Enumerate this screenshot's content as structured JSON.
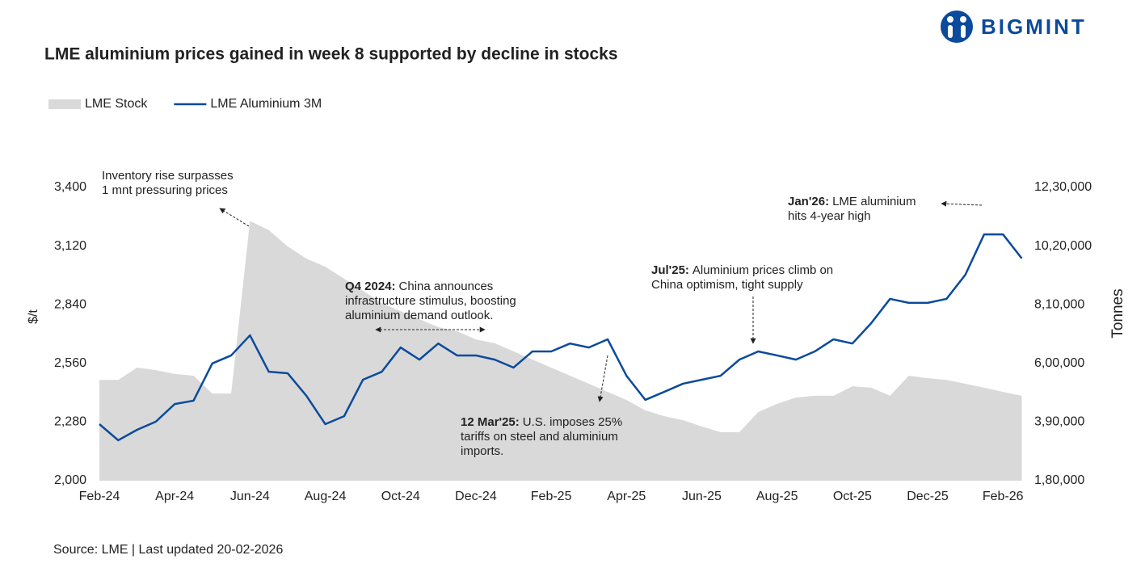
{
  "chart_data": {
    "type": "line-area",
    "title": "LME aluminium prices gained in week 8 supported by decline in stocks",
    "logo": "BIGMINT",
    "source": "Source: LME | Last updated 20-02-2026",
    "ylabel": "$/t",
    "y2label": "Tonnes",
    "categories": [
      "Feb-24",
      null,
      null,
      null,
      "Apr-24",
      null,
      null,
      null,
      "Jun-24",
      null,
      null,
      null,
      "Aug-24",
      null,
      null,
      null,
      "Oct-24",
      null,
      null,
      null,
      "Dec-24",
      null,
      null,
      null,
      "Feb-25",
      null,
      null,
      null,
      "Apr-25",
      null,
      null,
      null,
      "Jun-25",
      null,
      null,
      null,
      "Aug-25",
      null,
      null,
      null,
      "Oct-25",
      null,
      null,
      null,
      "Dec-25",
      null,
      null,
      null,
      "Feb-26",
      null
    ],
    "series": [
      {
        "name": "LME Stock",
        "color": "#d9d9d9",
        "axis": "y2",
        "kind": "area",
        "values": [
          541000,
          541000,
          585000,
          576000,
          562000,
          556000,
          492000,
          492000,
          1110000,
          1077000,
          1019000,
          975000,
          946000,
          903000,
          860000,
          816000,
          787000,
          758000,
          730000,
          715000,
          686000,
          672000,
          643000,
          614000,
          585000,
          556000,
          527000,
          498000,
          469000,
          432000,
          411000,
          397000,
          374000,
          354000,
          354000,
          426000,
          455000,
          478000,
          484000,
          484000,
          518000,
          513000,
          484000,
          556000,
          547000,
          541000,
          527000,
          513000,
          498000,
          484000
        ]
      },
      {
        "name": "LME Aluminium 3M",
        "color": "#0b4a9c",
        "axis": "y",
        "kind": "line",
        "values": [
          2270,
          2193,
          2243,
          2282,
          2366,
          2382,
          2560,
          2598,
          2694,
          2520,
          2513,
          2405,
          2270,
          2308,
          2482,
          2520,
          2636,
          2578,
          2655,
          2598,
          2598,
          2578,
          2540,
          2617,
          2617,
          2655,
          2636,
          2675,
          2501,
          2386,
          2424,
          2463,
          2482,
          2501,
          2578,
          2617,
          2598,
          2578,
          2617,
          2675,
          2655,
          2752,
          2868,
          2849,
          2849,
          2868,
          2983,
          3176,
          3176,
          3061
        ]
      }
    ],
    "ylim": [
      2000,
      3400
    ],
    "yticks": [
      {
        "value": 2000,
        "label": "2,000"
      },
      {
        "value": 2280,
        "label": "2,280"
      },
      {
        "value": 2560,
        "label": "2,560"
      },
      {
        "value": 2840,
        "label": "2,840"
      },
      {
        "value": 3120,
        "label": "3,120"
      },
      {
        "value": 3400,
        "label": "3,400"
      }
    ],
    "y2lim": [
      180000,
      1230000
    ],
    "y2ticks": [
      {
        "value": 180000,
        "label": "1,80,000"
      },
      {
        "value": 390000,
        "label": "3,90,000"
      },
      {
        "value": 600000,
        "label": "6,00,000"
      },
      {
        "value": 810000,
        "label": "8,10,000"
      },
      {
        "value": 1020000,
        "label": "10,20,000"
      },
      {
        "value": 1230000,
        "label": "12,30,000"
      }
    ],
    "grid": false,
    "legend": "top-left",
    "annotations": [
      {
        "text": [
          "Inventory rise surpasses",
          "1 mnt pressuring prices"
        ]
      },
      {
        "label": "Q4 2024:",
        "text": [
          "China announces",
          "infrastructure stimulus, boosting",
          "aluminium demand outlook."
        ]
      },
      {
        "label": "12 Mar'25:",
        "text": [
          "U.S. imposes 25%",
          "tariffs on steel and aluminium",
          "imports."
        ]
      },
      {
        "label": "Jul'25:",
        "text": [
          "Aluminium prices climb on",
          "China optimism, tight supply"
        ]
      },
      {
        "label": "Jan'26:",
        "text": [
          "LME aluminium",
          "hits 4-year high"
        ]
      }
    ]
  }
}
